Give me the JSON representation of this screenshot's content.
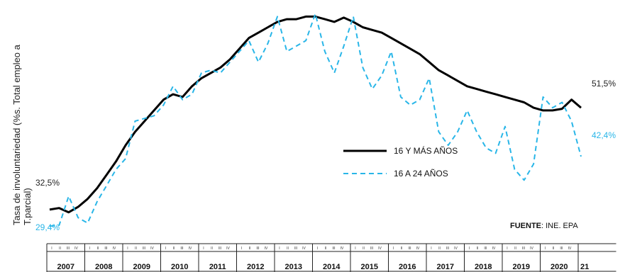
{
  "chart_data": {
    "type": "line",
    "title": "",
    "xlabel": "",
    "ylabel": "Tasa de involuntariedad (%s. Total empleo a T.parcial)",
    "years": [
      "2007",
      "2008",
      "2009",
      "2010",
      "2011",
      "2012",
      "2013",
      "2014",
      "2015",
      "2016",
      "2017",
      "2018",
      "2019",
      "2020",
      "21"
    ],
    "quarter_labels": [
      "I",
      "II",
      "III",
      "IV"
    ],
    "y_range": [
      28,
      70
    ],
    "grid": false,
    "legend": "center-right",
    "series": [
      {
        "name": "16 Y MÁS AÑOS",
        "color": "#000000",
        "dash": "solid",
        "x": [
          2007.0,
          2007.25,
          2007.5,
          2007.75,
          2008.0,
          2008.25,
          2008.5,
          2008.75,
          2009.0,
          2009.25,
          2009.5,
          2009.75,
          2010.0,
          2010.25,
          2010.5,
          2010.75,
          2011.0,
          2011.25,
          2011.5,
          2011.75,
          2012.0,
          2012.25,
          2012.5,
          2012.75,
          2013.0,
          2013.25,
          2013.5,
          2013.75,
          2014.0,
          2014.25,
          2014.5,
          2014.75,
          2015.0,
          2015.25,
          2015.5,
          2015.75,
          2016.0,
          2016.25,
          2016.5,
          2016.75,
          2017.0,
          2017.25,
          2017.5,
          2017.75,
          2018.0,
          2018.25,
          2018.5,
          2018.75,
          2019.0,
          2019.25,
          2019.5,
          2019.75,
          2020.0,
          2020.25,
          2020.5,
          2020.75,
          2021.0
        ],
        "y": [
          32.5,
          32.8,
          32.0,
          33.0,
          34.5,
          36.5,
          39.0,
          41.5,
          44.5,
          47.0,
          49.0,
          51.0,
          53.0,
          54.0,
          53.5,
          55.5,
          57.0,
          58.0,
          59.0,
          60.5,
          62.5,
          64.5,
          65.5,
          66.5,
          67.5,
          68.0,
          68.0,
          68.5,
          68.5,
          68.0,
          67.5,
          68.3,
          67.5,
          66.5,
          66.0,
          65.5,
          64.5,
          63.5,
          62.5,
          61.5,
          60.0,
          58.5,
          57.5,
          56.5,
          55.5,
          55.0,
          54.5,
          54.0,
          53.5,
          53.0,
          52.5,
          51.5,
          51.0,
          51.0,
          51.3,
          53.0,
          51.5
        ]
      },
      {
        "name": "16 A 24 AÑOS",
        "color": "#29b6e8",
        "dash": "dashed",
        "x": [
          2007.0,
          2007.25,
          2007.5,
          2007.75,
          2008.0,
          2008.25,
          2008.5,
          2008.75,
          2009.0,
          2009.25,
          2009.5,
          2009.75,
          2010.0,
          2010.25,
          2010.5,
          2010.75,
          2011.0,
          2011.25,
          2011.5,
          2011.75,
          2012.0,
          2012.25,
          2012.5,
          2012.75,
          2013.0,
          2013.25,
          2013.5,
          2013.75,
          2014.0,
          2014.25,
          2014.5,
          2014.75,
          2015.0,
          2015.25,
          2015.5,
          2015.75,
          2016.0,
          2016.25,
          2016.5,
          2016.75,
          2017.0,
          2017.25,
          2017.5,
          2017.75,
          2018.0,
          2018.25,
          2018.5,
          2018.75,
          2019.0,
          2019.25,
          2019.5,
          2019.75,
          2020.0,
          2020.25,
          2020.5,
          2020.75,
          2021.0
        ],
        "y": [
          29.4,
          29.6,
          35.0,
          31.0,
          30.0,
          34.0,
          37.0,
          40.0,
          42.0,
          49.0,
          49.5,
          50.0,
          52.0,
          55.5,
          53.0,
          54.0,
          58.0,
          58.5,
          58.0,
          60.0,
          62.0,
          64.0,
          60.0,
          63.5,
          68.5,
          62.0,
          63.0,
          64.0,
          69.0,
          62.0,
          58.0,
          63.0,
          68.5,
          59.0,
          55.0,
          57.5,
          62.0,
          53.5,
          52.0,
          53.0,
          57.0,
          47.0,
          44.5,
          47.0,
          51.0,
          47.0,
          44.0,
          43.0,
          48.0,
          40.0,
          38.0,
          41.0,
          53.5,
          51.5,
          52.5,
          49.0,
          42.4
        ]
      }
    ],
    "annotations": {
      "adult_start": "32,5%",
      "adult_end": "51,5%",
      "youth_start": "29,4%",
      "youth_end": "42,4%"
    },
    "source": {
      "label": "FUENTE",
      "text": ": INE. EPA"
    }
  }
}
